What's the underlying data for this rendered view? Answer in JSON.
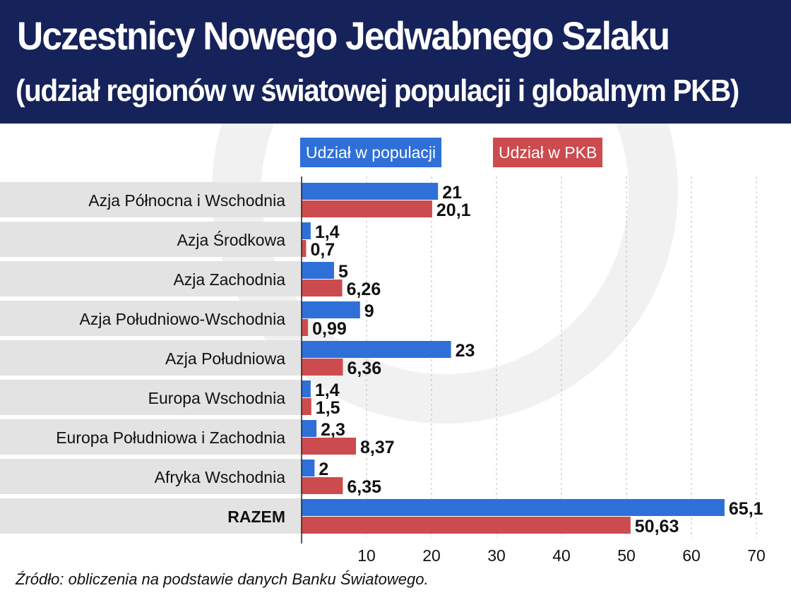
{
  "title": "Uczestnicy Nowego Jedwabnego Szlaku",
  "subtitle": "(udział regionów w światowej populacji i globalnym PKB)",
  "source": "Źródło: obliczenia na podstawie danych Banku Światowego.",
  "colors": {
    "population": "#2f6fd8",
    "gdp": "#cc4b4e",
    "banner": "#16225a",
    "label_band": "#e3e3e3"
  },
  "chart_data": {
    "type": "bar",
    "orientation": "horizontal",
    "categories": [
      "Azja Północna i Wschodnia",
      "Azja Środkowa",
      "Azja Zachodnia",
      "Azja Południowo-Wschodnia",
      "Azja Południowa",
      "Europa Wschodnia",
      "Europa Południowa i Zachodnia",
      "Afryka Wschodnia",
      "RAZEM"
    ],
    "series": [
      {
        "name": "Udział w populacji",
        "values": [
          21,
          1.4,
          5,
          9,
          23,
          1.4,
          2.3,
          2,
          65.1
        ],
        "labels": [
          "21",
          "1,4",
          "5",
          "9",
          "23",
          "1,4",
          "2,3",
          "2",
          "65,1"
        ]
      },
      {
        "name": "Udział w PKB",
        "values": [
          20.1,
          0.7,
          6.26,
          0.99,
          6.36,
          1.5,
          8.37,
          6.35,
          50.63
        ],
        "labels": [
          "20,1",
          "0,7",
          "6,26",
          "0,99",
          "6,36",
          "1,5",
          "8,37",
          "6,35",
          "50,63"
        ]
      }
    ],
    "xlim": [
      0,
      70
    ],
    "xticks": [
      "10",
      "20",
      "30",
      "40",
      "50",
      "60",
      "70"
    ],
    "grid": true,
    "legend": "top"
  }
}
